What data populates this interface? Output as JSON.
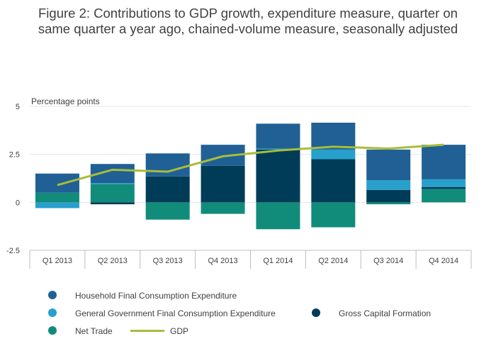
{
  "title_line1": "Figure 2: Contributions to GDP growth, expenditure measure, quarter on",
  "title_line2": "same quarter a year ago, chained-volume measure, seasonally adjusted",
  "chart_data": {
    "type": "bar",
    "stacked": true,
    "ylabel": "Percentage points",
    "ylim": [
      -2.5,
      5
    ],
    "yticks": [
      "5",
      "2.5",
      "0",
      "-2.5"
    ],
    "ytick_values": [
      5,
      2.5,
      0,
      -2.5
    ],
    "categories": [
      "Q1 2013",
      "Q2 2013",
      "Q3 2013",
      "Q4 2013",
      "Q1 2014",
      "Q2 2014",
      "Q3 2014",
      "Q4 2014"
    ],
    "grid": true,
    "series": [
      {
        "name": "Household Final Consumption Expenditure",
        "color": "#206095",
        "values": [
          1.0,
          1.0,
          1.2,
          1.1,
          1.3,
          1.4,
          1.6,
          1.8
        ]
      },
      {
        "name": "General Government Final Consumption Expenditure",
        "color": "#27a0cc",
        "values": [
          -0.3,
          0.05,
          0.0,
          0.0,
          0.05,
          0.5,
          0.5,
          0.4
        ]
      },
      {
        "name": "Gross Capital Formation",
        "color": "#003c57",
        "values": [
          0.0,
          -0.1,
          1.35,
          1.9,
          2.75,
          2.25,
          0.65,
          0.1
        ]
      },
      {
        "name": "Net Trade",
        "color": "#118c7b",
        "values": [
          0.5,
          0.95,
          -0.9,
          -0.6,
          -1.4,
          -1.3,
          -0.1,
          0.7
        ]
      }
    ],
    "line_series": {
      "name": "GDP",
      "color": "#a8bd3a",
      "values": [
        0.9,
        1.7,
        1.6,
        2.4,
        2.7,
        2.9,
        2.8,
        3.0
      ]
    },
    "legend_position": "bottom"
  }
}
